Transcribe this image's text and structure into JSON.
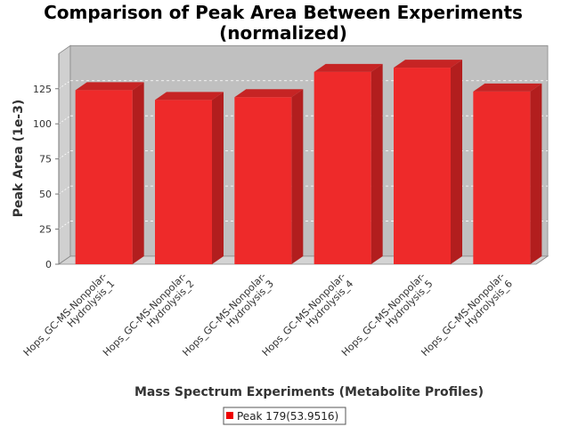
{
  "chart_data": {
    "type": "bar",
    "title": "Comparison of Peak Area Between Experiments",
    "subtitle": "(normalized)",
    "xlabel": "Mass Spectrum Experiments (Metabolite Profiles)",
    "ylabel": "Peak Area (1e-3)",
    "ylim": [
      0,
      150
    ],
    "yticks": [
      0,
      25,
      50,
      75,
      100,
      125
    ],
    "categories": [
      "Hops_GC-MS-Nonpolar-Hydrolysis_1",
      "Hops_GC-MS-Nonpolar-Hydrolysis_2",
      "Hops_GC-MS-Nonpolar-Hydrolysis_3",
      "Hops_GC-MS-Nonpolar-Hydrolysis_4",
      "Hops_GC-MS-Nonpolar-Hydrolysis_5",
      "Hops_GC-MS-Nonpolar-Hydrolysis_6"
    ],
    "category_lines": [
      [
        "Hops_GC-MS-Nonpolar-",
        "Hydrolysis_1"
      ],
      [
        "Hops_GC-MS-Nonpolar-",
        "Hydrolysis_2"
      ],
      [
        "Hops_GC-MS-Nonpolar-",
        "Hydrolysis_3"
      ],
      [
        "Hops_GC-MS-Nonpolar-",
        "Hydrolysis_4"
      ],
      [
        "Hops_GC-MS-Nonpolar-",
        "Hydrolysis_5"
      ],
      [
        "Hops_GC-MS-Nonpolar-",
        "Hydrolysis_6"
      ]
    ],
    "series": [
      {
        "name": "Peak 179(53.9516)",
        "values": [
          124,
          117,
          119,
          137,
          140,
          123
        ]
      }
    ],
    "grid": true,
    "legend_position": "bottom",
    "colors": {
      "bar_front": "#ee2a2a",
      "bar_side": "#b21e1e",
      "bar_top": "#c62424",
      "plot_bg": "#c0c0c0",
      "wall_side": "#d0d0d0",
      "floor": "#d4d4d4",
      "legend_swatch": "#ee0000"
    }
  }
}
